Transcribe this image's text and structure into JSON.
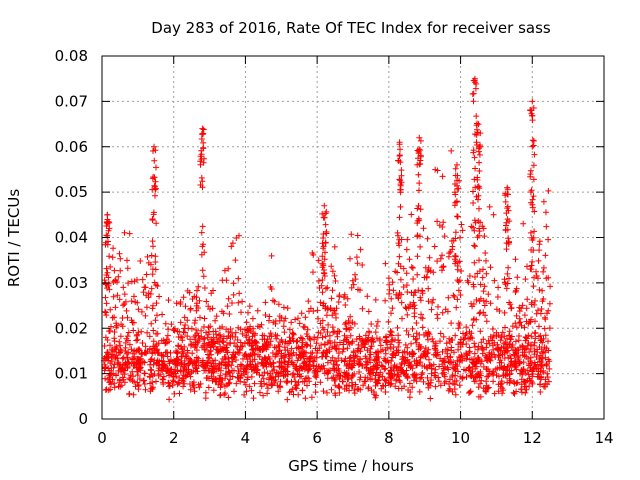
{
  "chart_data": {
    "type": "scatter",
    "title": "Day 283 of 2016, Rate Of TEC Index for receiver sass",
    "xlabel": "GPS time / hours",
    "ylabel": "ROTI / TECUs",
    "xlim": [
      0,
      14
    ],
    "ylim": [
      0,
      0.08
    ],
    "xticks": [
      "0",
      "2",
      "4",
      "6",
      "8",
      "10",
      "12",
      "14"
    ],
    "yticks": [
      "0",
      "0.01",
      "0.02",
      "0.03",
      "0.04",
      "0.05",
      "0.06",
      "0.07",
      "0.08"
    ],
    "grid": true,
    "marker": "+",
    "color": "#ff0000",
    "x_range_of_data": [
      0.05,
      12.5
    ],
    "notable_peaks": [
      {
        "x": 0.15,
        "y": 0.045
      },
      {
        "x": 1.45,
        "y": 0.06
      },
      {
        "x": 2.8,
        "y": 0.064
      },
      {
        "x": 6.2,
        "y": 0.047
      },
      {
        "x": 8.3,
        "y": 0.061
      },
      {
        "x": 8.85,
        "y": 0.062
      },
      {
        "x": 9.9,
        "y": 0.056
      },
      {
        "x": 10.4,
        "y": 0.075
      },
      {
        "x": 10.5,
        "y": 0.065
      },
      {
        "x": 11.3,
        "y": 0.051
      },
      {
        "x": 12.0,
        "y": 0.07
      }
    ]
  }
}
